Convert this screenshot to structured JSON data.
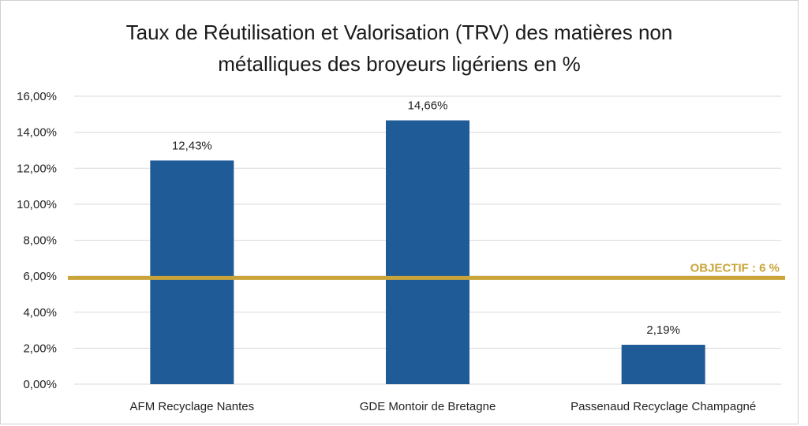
{
  "chart_data": {
    "type": "bar",
    "title_line1": "Taux de Réutilisation et Valorisation (TRV) des matières non",
    "title_line2": "métalliques des broyeurs ligériens en %",
    "categories": [
      "AFM Recyclage Nantes",
      "GDE Montoir de Bretagne",
      "Passenaud Recyclage Champagné"
    ],
    "values": [
      12.43,
      14.66,
      2.19
    ],
    "data_labels": [
      "12,43%",
      "14,66%",
      "2,19%"
    ],
    "ylim": [
      0,
      16
    ],
    "yticks": [
      0,
      2,
      4,
      6,
      8,
      10,
      12,
      14,
      16
    ],
    "ytick_labels": [
      "0,00%",
      "2,00%",
      "4,00%",
      "6,00%",
      "8,00%",
      "10,00%",
      "12,00%",
      "14,00%",
      "16,00%"
    ],
    "grid": true,
    "target": {
      "value": 5.9,
      "label": "OBJECTIF : 6 %"
    },
    "colors": {
      "bar": "#1f5b96",
      "target": "#c9a43a",
      "grid": "#d9d9d9"
    }
  }
}
